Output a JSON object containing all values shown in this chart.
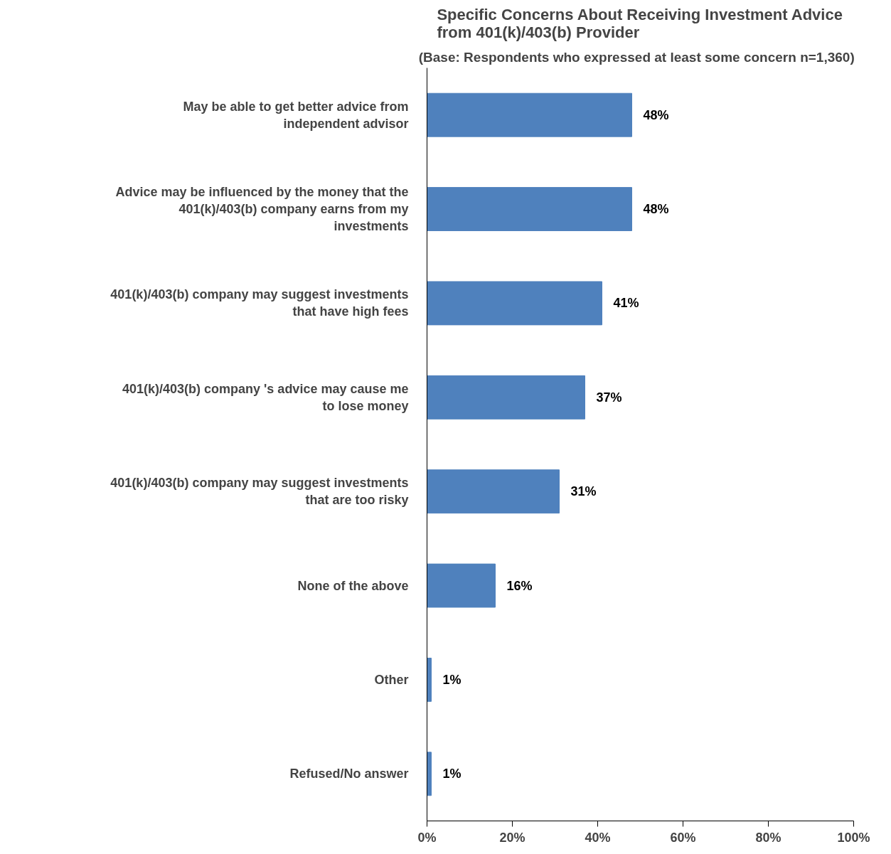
{
  "chart_data": {
    "type": "bar",
    "orientation": "horizontal",
    "title": "Specific Concerns About Receiving Investment Advice from 401(k)/403(b) Provider",
    "subtitle": "(Base:  Respondents who expressed at least some concern  n=1,360)",
    "categories": [
      "May be able to get better advice from independent advisor",
      "Advice may be influenced by the money that the 401(k)/403(b) company earns from my investments",
      "401(k)/403(b) company may suggest investments that have high fees",
      "401(k)/403(b) company 's advice may cause me to lose money",
      "401(k)/403(b) company may suggest investments that are too risky",
      "None of the above",
      "Other",
      "Refused/No answer"
    ],
    "values": [
      48,
      48,
      41,
      37,
      31,
      16,
      1,
      1
    ],
    "color": "#4f81bd",
    "value_labels": [
      "48%",
      "48%",
      "41%",
      "37%",
      "31%",
      "16%",
      "1%",
      "1%"
    ],
    "xlim": [
      0,
      100
    ],
    "xticks": [
      {
        "value": 0,
        "label": "0%"
      },
      {
        "value": 20,
        "label": "20%"
      },
      {
        "value": 40,
        "label": "40%"
      },
      {
        "value": 60,
        "label": "60%"
      },
      {
        "value": 80,
        "label": "80%"
      },
      {
        "value": 100,
        "label": "100%"
      }
    ],
    "grid": false
  }
}
